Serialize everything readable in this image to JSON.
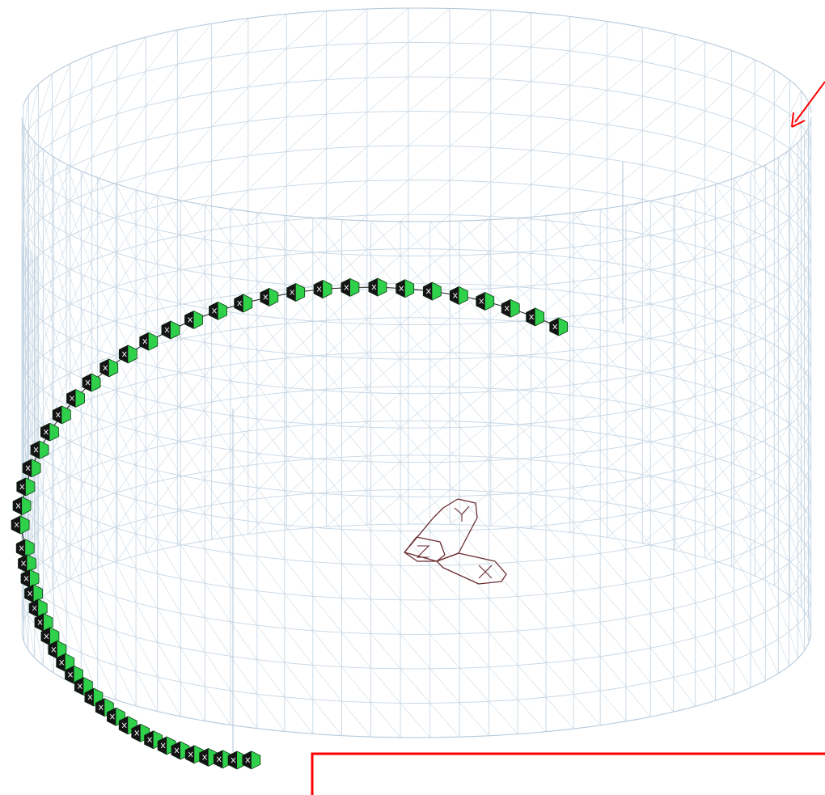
{
  "scene": {
    "description_hidden": "",
    "colors": {
      "mesh": "#c6d6e4",
      "support_fill": "#2fd04a",
      "support_dark": "#141414",
      "axis_triad": "#6a2b30",
      "annotation": "#ff0000"
    },
    "icons": {
      "support": "pinned-support-icon",
      "triad": "axis-triad-icon",
      "arrow": "annotation-arrow-icon"
    },
    "supports_count": 52
  }
}
